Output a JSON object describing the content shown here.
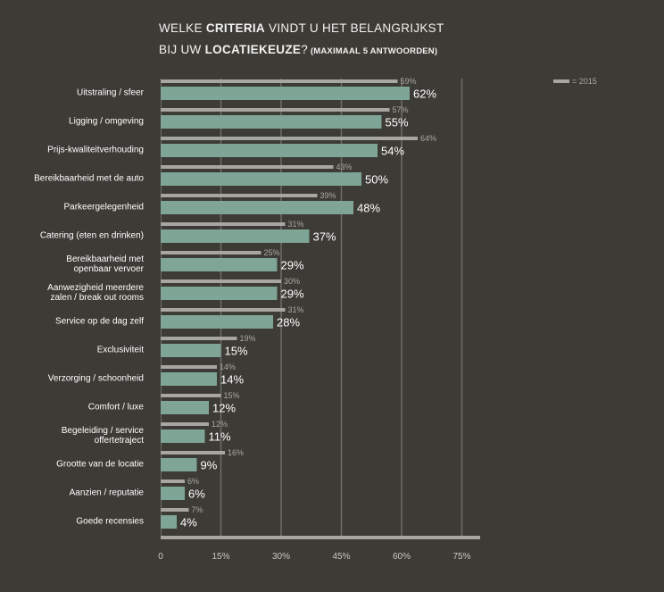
{
  "title": {
    "line1_pre": "WELKE ",
    "line1_bold": "CRITERIA",
    "line1_post": " VINDT U HET BELANGRIJKST",
    "line2_pre": "BIJ UW ",
    "line2_bold": "LOCATIEKEUZE",
    "line2_post": "?",
    "line2_small": " (MAXIMAAL 5 ANTWOORDEN)"
  },
  "legend": {
    "label": "= 2015",
    "color": "#a8a6a2"
  },
  "colors": {
    "current": "#7fa597",
    "previous": "#a8a6a2",
    "grid": "#6e6c67",
    "axis": "#a8a6a2"
  },
  "chart_data": {
    "type": "bar",
    "orientation": "horizontal",
    "xlim": [
      0,
      80
    ],
    "ticks": [
      0,
      15,
      30,
      45,
      60,
      75
    ],
    "tick_labels": [
      "0",
      "15%",
      "30%",
      "45%",
      "60%",
      "75%"
    ],
    "categories": [
      [
        "Uitstraling / sfeer"
      ],
      [
        "Ligging / omgeving"
      ],
      [
        "Prijs-kwaliteitverhouding"
      ],
      [
        "Bereikbaarheid met de auto"
      ],
      [
        "Parkeergelegenheid"
      ],
      [
        "Catering (eten en drinken)"
      ],
      [
        "Bereikbaarheid met",
        "openbaar vervoer"
      ],
      [
        "Aanwezigheid meerdere",
        "zalen / break out rooms"
      ],
      [
        "Service op de dag zelf"
      ],
      [
        "Exclusiviteit"
      ],
      [
        "Verzorging / schoonheid"
      ],
      [
        "Comfort / luxe"
      ],
      [
        "Begeleiding / service",
        "offertetraject"
      ],
      [
        "Grootte van de locatie"
      ],
      [
        "Aanzien / reputatie"
      ],
      [
        "Goede recensies"
      ]
    ],
    "series": [
      {
        "values": [
          62,
          55,
          54,
          50,
          48,
          37,
          29,
          29,
          28,
          15,
          14,
          12,
          11,
          9,
          6,
          4
        ],
        "labels": [
          "62%",
          "55%",
          "54%",
          "50%",
          "48%",
          "37%",
          "29%",
          "29%",
          "28%",
          "15%",
          "14%",
          "12%",
          "11%",
          "9%",
          "6%",
          "4%"
        ]
      },
      {
        "name": "2015",
        "values": [
          59,
          57,
          64,
          43,
          39,
          31,
          25,
          30,
          31,
          19,
          14,
          15,
          12,
          16,
          6,
          7
        ],
        "labels": [
          "59%",
          "57%",
          "64%",
          "43%",
          "39%",
          "31%",
          "25%",
          "30%",
          "31%",
          "19%",
          "14%",
          "15%",
          "12%",
          "16%",
          "6%",
          "7%"
        ]
      }
    ]
  }
}
